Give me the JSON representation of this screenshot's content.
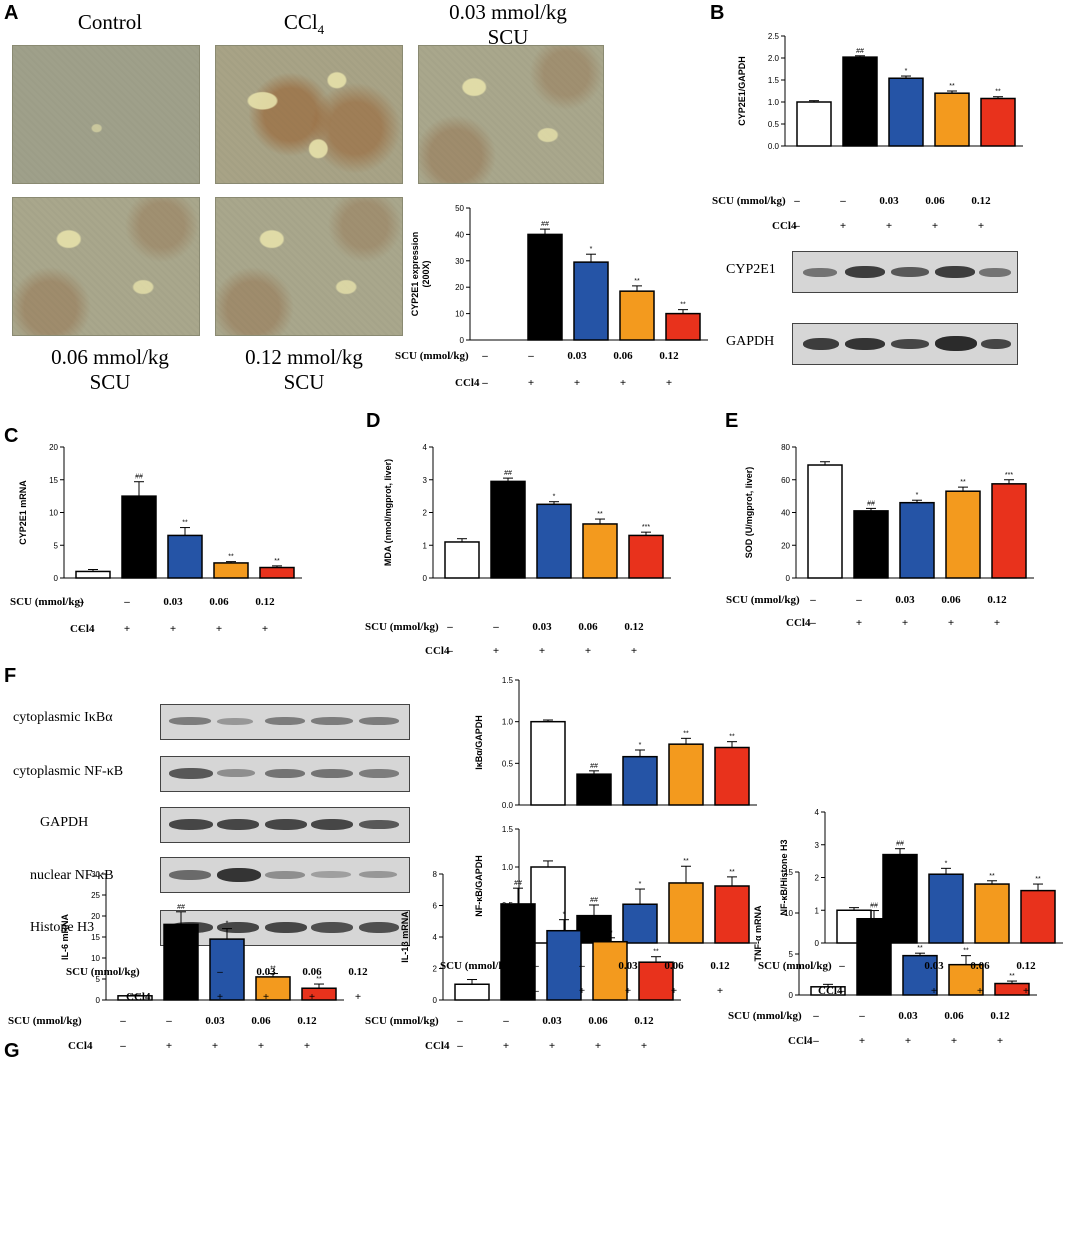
{
  "panels": {
    "A": "A",
    "B": "B",
    "C": "C",
    "D": "D",
    "E": "E",
    "F": "F",
    "G": "G"
  },
  "micrographs": {
    "control": "Control",
    "ccl4": "CCl",
    "ccl4_sub": "4",
    "scu003_line1": "0.03 mmol/kg",
    "scu003_line2": "SCU",
    "scu006_line1": "0.06 mmol/kg",
    "scu006_line2": "SCU",
    "scu012_line1": "0.12 mmol/kg",
    "scu012_line2": "SCU"
  },
  "treatment": {
    "scu_label": "SCU (mmol/kg)",
    "ccl4_label": "CCl4",
    "scu_values": [
      "–",
      "–",
      "0.03",
      "0.06",
      "0.12"
    ],
    "ccl4_values": [
      "–",
      "+",
      "+",
      "+",
      "+"
    ]
  },
  "blots": {
    "b_cyp2e1": "CYP2E1",
    "b_gapdh": "GAPDH",
    "f_ikba": "cytoplasmic IκBα",
    "f_nfkb_cyto": "cytoplasmic NF-κB",
    "f_gapdh": "GAPDH",
    "f_nfkb_nuc": "nuclear NF-κB",
    "f_histone": "Histone H3"
  },
  "colors": {
    "control": "#ffffff",
    "ccl4": "#000000",
    "scu003": "#2554a6",
    "scu006": "#f39a1e",
    "scu012": "#e8321c"
  },
  "chart_data": [
    {
      "id": "A",
      "type": "bar",
      "ylabel": "CYP2E1 expression\n(200X)",
      "ylim": [
        0,
        50
      ],
      "yticks": [
        0,
        10,
        20,
        30,
        40,
        50
      ],
      "values": [
        0,
        40,
        29.5,
        18.5,
        10
      ],
      "errors": [
        0,
        2,
        3,
        2,
        1.5
      ],
      "sig": [
        "",
        "##",
        "*",
        "**",
        "**"
      ]
    },
    {
      "id": "B",
      "type": "bar",
      "ylabel": "CYP2E1/GAPDH",
      "ylim": [
        0,
        2.5
      ],
      "yticks": [
        0.0,
        0.5,
        1.0,
        1.5,
        2.0,
        2.5
      ],
      "values": [
        1.0,
        2.02,
        1.54,
        1.2,
        1.08
      ],
      "errors": [
        0.03,
        0.03,
        0.05,
        0.05,
        0.04
      ],
      "sig": [
        "",
        "##",
        "*",
        "**",
        "**"
      ]
    },
    {
      "id": "C",
      "type": "bar",
      "ylabel": "CYP2E1 mRNA",
      "ylim": [
        0,
        20
      ],
      "yticks": [
        0,
        5,
        10,
        15,
        20
      ],
      "values": [
        1.0,
        12.5,
        6.5,
        2.3,
        1.6
      ],
      "errors": [
        0.3,
        2.2,
        1.2,
        0.2,
        0.25
      ],
      "sig": [
        "",
        "##",
        "**",
        "**",
        "**"
      ]
    },
    {
      "id": "D",
      "type": "bar",
      "ylabel": "MDA (nmol/mgprot, liver)",
      "ylim": [
        0,
        4
      ],
      "yticks": [
        0,
        1,
        2,
        3,
        4
      ],
      "values": [
        1.1,
        2.95,
        2.25,
        1.65,
        1.3
      ],
      "errors": [
        0.1,
        0.1,
        0.08,
        0.15,
        0.1
      ],
      "sig": [
        "",
        "##",
        "*",
        "**",
        "***"
      ]
    },
    {
      "id": "E",
      "type": "bar",
      "ylabel": "SOD (U/mgprot, liver)",
      "ylim": [
        0,
        80
      ],
      "yticks": [
        0,
        20,
        40,
        60,
        80
      ],
      "values": [
        69,
        41,
        46,
        53,
        57.5
      ],
      "errors": [
        2,
        1.5,
        1.5,
        2.5,
        2.5
      ],
      "sig": [
        "",
        "##",
        "*",
        "**",
        "***"
      ]
    },
    {
      "id": "F1",
      "type": "bar",
      "ylabel": "IκBα/GAPDH",
      "ylim": [
        0,
        1.5
      ],
      "yticks": [
        0.0,
        0.5,
        1.0,
        1.5
      ],
      "values": [
        1.0,
        0.37,
        0.58,
        0.73,
        0.69
      ],
      "errors": [
        0.02,
        0.04,
        0.08,
        0.07,
        0.07
      ],
      "sig": [
        "",
        "##",
        "*",
        "**",
        "**"
      ]
    },
    {
      "id": "F2",
      "type": "bar",
      "ylabel": "NF-κB/GAPDH",
      "ylim": [
        0,
        1.5
      ],
      "yticks": [
        0.0,
        0.5,
        1.0,
        1.5
      ],
      "values": [
        1.0,
        0.36,
        0.51,
        0.79,
        0.75
      ],
      "errors": [
        0.08,
        0.14,
        0.2,
        0.22,
        0.12
      ],
      "sig": [
        "",
        "##",
        "*",
        "**",
        "**"
      ]
    },
    {
      "id": "F3",
      "type": "bar",
      "ylabel": "NF-κB/Histone H3",
      "ylim": [
        0,
        4
      ],
      "yticks": [
        0,
        1,
        2,
        3,
        4
      ],
      "values": [
        1.0,
        2.7,
        2.1,
        1.8,
        1.6
      ],
      "errors": [
        0.08,
        0.18,
        0.18,
        0.1,
        0.2
      ],
      "sig": [
        "",
        "##",
        "*",
        "**",
        "**"
      ]
    },
    {
      "id": "G1",
      "type": "bar",
      "ylabel": "IL-6 mRNA",
      "ylim": [
        0,
        30
      ],
      "yticks": [
        0,
        5,
        10,
        15,
        20,
        25,
        30
      ],
      "values": [
        1.0,
        18,
        14.5,
        5.5,
        2.8
      ],
      "errors": [
        0.2,
        3,
        2.5,
        0.8,
        1.0
      ],
      "sig": [
        "",
        "##",
        "*",
        "**",
        "**"
      ]
    },
    {
      "id": "G2",
      "type": "bar",
      "ylabel": "IL-1β mRNA",
      "ylim": [
        0,
        8
      ],
      "yticks": [
        0,
        2,
        4,
        6,
        8
      ],
      "values": [
        1.0,
        6.1,
        4.4,
        3.7,
        2.4
      ],
      "errors": [
        0.3,
        1.0,
        0.7,
        0.25,
        0.35
      ],
      "sig": [
        "",
        "##",
        "*",
        "**",
        "**"
      ]
    },
    {
      "id": "G3",
      "type": "bar",
      "ylabel": "TNF-α mRNA",
      "ylim": [
        0,
        15
      ],
      "yticks": [
        0,
        5,
        10,
        15
      ],
      "values": [
        1.0,
        9.3,
        4.8,
        3.7,
        1.4
      ],
      "errors": [
        0.3,
        1.0,
        0.3,
        1.1,
        0.3
      ],
      "sig": [
        "",
        "##",
        "**",
        "**",
        "**"
      ]
    }
  ]
}
